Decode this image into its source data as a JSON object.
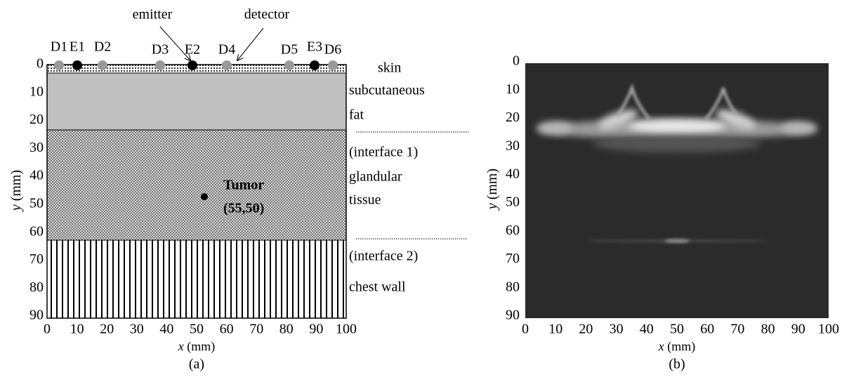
{
  "panel_a": {
    "sensors": [
      "D1",
      "E1",
      "D2",
      "D3",
      "E2",
      "D4",
      "D5",
      "E3",
      "D6"
    ],
    "emitter_label": "emitter",
    "detector_label": "detector",
    "layer_labels": [
      "skin",
      "subcutaneous",
      "fat",
      "(interface 1)",
      "glandular",
      "tissue",
      "(interface 2)",
      "chest wall"
    ],
    "tumor_label": "Tumor",
    "tumor_coords": "(55,50)",
    "xticks": [
      0,
      10,
      20,
      30,
      40,
      50,
      60,
      70,
      80,
      90,
      100
    ],
    "yticks": [
      0,
      10,
      20,
      30,
      40,
      50,
      60,
      70,
      80,
      90
    ],
    "x_label": "x",
    "x_unit": "(mm)",
    "y_label": "y",
    "y_unit": "(mm)",
    "caption": "(a)"
  },
  "panel_b": {
    "xticks": [
      0,
      10,
      20,
      30,
      40,
      50,
      60,
      70,
      80,
      90,
      100
    ],
    "yticks": [
      0,
      10,
      20,
      30,
      40,
      50,
      60,
      70,
      80,
      90
    ],
    "x_label": "x",
    "x_unit": "(mm)",
    "y_label": "y",
    "y_unit": "(mm)",
    "caption": "(b)"
  }
}
